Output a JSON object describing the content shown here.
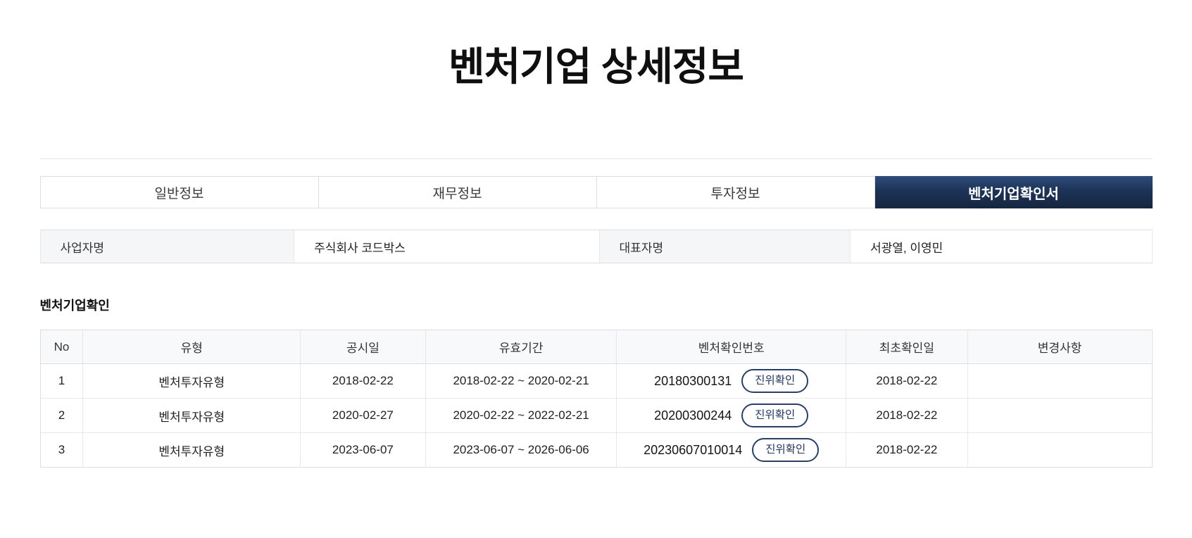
{
  "page": {
    "title": "벤처기업 상세정보"
  },
  "tabs": [
    {
      "label": "일반정보",
      "active": false
    },
    {
      "label": "재무정보",
      "active": false
    },
    {
      "label": "투자정보",
      "active": false
    },
    {
      "label": "벤처기업확인서",
      "active": true
    }
  ],
  "company_info": {
    "business_name_label": "사업자명",
    "business_name_value": "주식회사 코드박스",
    "ceo_label": "대표자명",
    "ceo_value": "서광열, 이영민"
  },
  "section": {
    "title": "벤처기업확인"
  },
  "table": {
    "headers": [
      "No",
      "유형",
      "공시일",
      "유효기간",
      "벤처확인번호",
      "최초확인일",
      "변경사항"
    ],
    "verify_button_label": "진위확인",
    "rows": [
      {
        "no": "1",
        "type": "벤처투자유형",
        "announce_date": "2018-02-22",
        "valid_period": "2018-02-22 ~ 2020-02-21",
        "confirm_no": "20180300131",
        "first_confirm_date": "2018-02-22",
        "changes": ""
      },
      {
        "no": "2",
        "type": "벤처투자유형",
        "announce_date": "2020-02-27",
        "valid_period": "2020-02-22 ~ 2022-02-21",
        "confirm_no": "20200300244",
        "first_confirm_date": "2018-02-22",
        "changes": ""
      },
      {
        "no": "3",
        "type": "벤처투자유형",
        "announce_date": "2023-06-07",
        "valid_period": "2023-06-07 ~ 2026-06-06",
        "confirm_no": "20230607010014",
        "first_confirm_date": "2018-02-22",
        "changes": ""
      }
    ]
  },
  "colors": {
    "active_tab_gradient_top": "#2e4d7b",
    "active_tab_gradient_bottom": "#16263f",
    "accent_navy": "#23365e",
    "label_cell_bg": "#f4f6f8",
    "table_header_bg": "#f8f9fb",
    "border": "#dcdee1"
  }
}
